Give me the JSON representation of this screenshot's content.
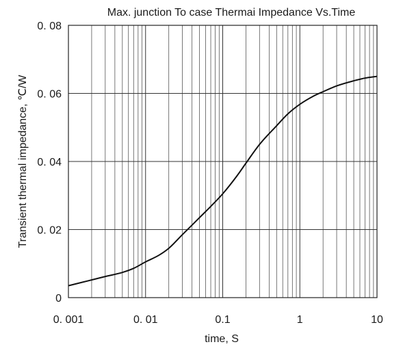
{
  "chart_data": {
    "type": "line",
    "title": "Max. junction To case Thermai  Impedance  Vs.Time",
    "xlabel": "time, S",
    "ylabel": "Transient thermal impedance, ℃/W",
    "xscale": "log",
    "xlim": [
      0.001,
      10
    ],
    "ylim": [
      0,
      0.08
    ],
    "grid": true,
    "x_ticks": [
      {
        "value": 0.001,
        "label": "0. 001"
      },
      {
        "value": 0.01,
        "label": "0. 01"
      },
      {
        "value": 0.1,
        "label": "0.1"
      },
      {
        "value": 1,
        "label": "1"
      },
      {
        "value": 10,
        "label": "10"
      }
    ],
    "y_ticks": [
      {
        "value": 0,
        "label": "0"
      },
      {
        "value": 0.02,
        "label": "0. 02"
      },
      {
        "value": 0.04,
        "label": "0. 04"
      },
      {
        "value": 0.06,
        "label": "0. 06"
      },
      {
        "value": 0.08,
        "label": "0. 08"
      }
    ],
    "series": [
      {
        "color": "#111111",
        "x": [
          0.001,
          0.0015,
          0.002,
          0.003,
          0.005,
          0.007,
          0.01,
          0.015,
          0.02,
          0.03,
          0.05,
          0.07,
          0.1,
          0.15,
          0.2,
          0.3,
          0.5,
          0.7,
          1,
          1.5,
          2,
          3,
          5,
          7,
          10
        ],
        "y": [
          0.0035,
          0.0045,
          0.0052,
          0.0062,
          0.0074,
          0.0086,
          0.0105,
          0.0125,
          0.0145,
          0.0185,
          0.0235,
          0.0268,
          0.0305,
          0.0355,
          0.0395,
          0.045,
          0.0505,
          0.054,
          0.0568,
          0.0592,
          0.0605,
          0.0622,
          0.0637,
          0.0645,
          0.065
        ]
      }
    ]
  }
}
